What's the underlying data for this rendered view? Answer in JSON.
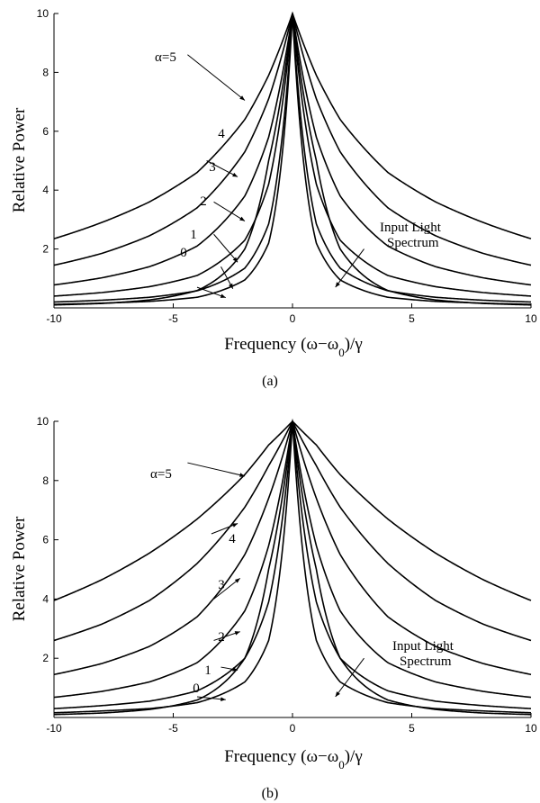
{
  "chart_data": [
    {
      "type": "line",
      "panel_label": "(a)",
      "xlabel": "Frequency (ω−ω",
      "xlabel_sub": "0",
      "xlabel_tail": ")/γ",
      "ylabel": "Relative Power",
      "xlim": [
        -10,
        10
      ],
      "ylim": [
        0,
        10
      ],
      "xticks": [
        -10,
        -5,
        0,
        5,
        10
      ],
      "xtick_labels": [
        "-10",
        "-5",
        "0",
        "5",
        "10"
      ],
      "yticks": [
        2,
        4,
        6,
        8,
        10
      ],
      "ytick_labels": [
        "2",
        "4",
        "6",
        "8",
        "10"
      ],
      "series": [
        {
          "name": "α=5",
          "label_text": "α=5",
          "x": [
            -10,
            -8,
            -6,
            -4,
            -2,
            -1,
            0,
            1,
            2,
            4,
            6,
            8,
            10
          ],
          "y": [
            2.35,
            2.9,
            3.6,
            4.6,
            6.4,
            7.9,
            10,
            7.9,
            6.4,
            4.6,
            3.6,
            2.9,
            2.35
          ]
        },
        {
          "name": "4",
          "label_text": "4",
          "x": [
            -10,
            -8,
            -6,
            -4,
            -2,
            -1,
            0,
            1,
            2,
            4,
            6,
            8,
            10
          ],
          "y": [
            1.45,
            1.85,
            2.45,
            3.4,
            5.3,
            7.1,
            10,
            7.1,
            5.3,
            3.4,
            2.45,
            1.85,
            1.45
          ]
        },
        {
          "name": "3",
          "label_text": "3",
          "x": [
            -10,
            -8,
            -6,
            -4,
            -2,
            -1,
            0,
            1,
            2,
            4,
            6,
            8,
            10
          ],
          "y": [
            0.78,
            1.02,
            1.4,
            2.1,
            3.8,
            5.8,
            10,
            5.8,
            3.8,
            2.1,
            1.4,
            1.02,
            0.78
          ]
        },
        {
          "name": "2",
          "label_text": "2",
          "x": [
            -10,
            -8,
            -6,
            -4,
            -2,
            -1,
            0,
            1,
            2,
            4,
            6,
            8,
            10
          ],
          "y": [
            0.4,
            0.52,
            0.72,
            1.1,
            2.3,
            4.2,
            10,
            4.2,
            2.3,
            1.1,
            0.72,
            0.52,
            0.4
          ]
        },
        {
          "name": "1",
          "label_text": "1",
          "x": [
            -10,
            -8,
            -6,
            -4,
            -2,
            -1,
            0,
            1,
            2,
            4,
            6,
            8,
            10
          ],
          "y": [
            0.2,
            0.26,
            0.36,
            0.58,
            1.35,
            2.85,
            10,
            2.85,
            1.35,
            0.58,
            0.36,
            0.26,
            0.2
          ]
        },
        {
          "name": "0",
          "label_text": "0",
          "x": [
            -10,
            -8,
            -6,
            -4,
            -2,
            -1,
            0,
            1,
            2,
            4,
            6,
            8,
            10
          ],
          "y": [
            0.12,
            0.16,
            0.22,
            0.36,
            0.95,
            2.2,
            10,
            2.2,
            0.95,
            0.36,
            0.22,
            0.16,
            0.12
          ]
        },
        {
          "name": "Input Light Spectrum",
          "label_text": "Input Light",
          "label_text2": "Spectrum",
          "x": [
            -10,
            -8,
            -6,
            -4,
            -2,
            -1,
            0,
            1,
            2,
            4,
            6,
            8,
            10
          ],
          "y": [
            0.1,
            0.15,
            0.27,
            0.59,
            2.0,
            5.0,
            10,
            5.0,
            2.0,
            0.59,
            0.27,
            0.15,
            0.1
          ]
        }
      ]
    },
    {
      "type": "line",
      "panel_label": "(b)",
      "xlabel": "Frequency (ω−ω",
      "xlabel_sub": "0",
      "xlabel_tail": ")/γ",
      "ylabel": "Relative Power",
      "xlim": [
        -10,
        10
      ],
      "ylim": [
        0,
        10
      ],
      "xticks": [
        -10,
        -5,
        0,
        5,
        10
      ],
      "xtick_labels": [
        "-10",
        "-5",
        "0",
        "5",
        "10"
      ],
      "yticks": [
        2,
        4,
        6,
        8,
        10
      ],
      "ytick_labels": [
        "2",
        "4",
        "6",
        "8",
        "10"
      ],
      "series": [
        {
          "name": "α=5",
          "label_text": "α=5",
          "x": [
            -10,
            -8,
            -6,
            -4,
            -2,
            -1,
            0,
            1,
            2,
            4,
            6,
            8,
            10
          ],
          "y": [
            3.95,
            4.65,
            5.55,
            6.7,
            8.2,
            9.2,
            10,
            9.2,
            8.2,
            6.7,
            5.55,
            4.65,
            3.95
          ]
        },
        {
          "name": "4",
          "label_text": "4",
          "x": [
            -10,
            -8,
            -6,
            -4,
            -2,
            -1,
            0,
            1,
            2,
            4,
            6,
            8,
            10
          ],
          "y": [
            2.6,
            3.15,
            3.95,
            5.2,
            7.1,
            8.5,
            10,
            8.5,
            7.1,
            5.2,
            3.95,
            3.15,
            2.6
          ]
        },
        {
          "name": "3",
          "label_text": "3",
          "x": [
            -10,
            -8,
            -6,
            -4,
            -2,
            -1,
            0,
            1,
            2,
            4,
            6,
            8,
            10
          ],
          "y": [
            1.45,
            1.82,
            2.4,
            3.4,
            5.5,
            7.4,
            10,
            7.4,
            5.5,
            3.4,
            2.4,
            1.82,
            1.45
          ]
        },
        {
          "name": "2",
          "label_text": "2",
          "x": [
            -10,
            -8,
            -6,
            -4,
            -2,
            -1,
            0,
            1,
            2,
            4,
            6,
            8,
            10
          ],
          "y": [
            0.68,
            0.88,
            1.2,
            1.85,
            3.6,
            5.8,
            10,
            5.8,
            3.6,
            1.85,
            1.2,
            0.88,
            0.68
          ]
        },
        {
          "name": "1",
          "label_text": "1",
          "x": [
            -10,
            -8,
            -6,
            -4,
            -2,
            -1,
            0,
            1,
            2,
            4,
            6,
            8,
            10
          ],
          "y": [
            0.3,
            0.4,
            0.55,
            0.9,
            2.0,
            3.9,
            10,
            3.9,
            2.0,
            0.9,
            0.55,
            0.4,
            0.3
          ]
        },
        {
          "name": "0",
          "label_text": "0",
          "x": [
            -10,
            -8,
            -6,
            -4,
            -2,
            -1,
            0,
            1,
            2,
            4,
            6,
            8,
            10
          ],
          "y": [
            0.16,
            0.22,
            0.3,
            0.5,
            1.2,
            2.6,
            10,
            2.6,
            1.2,
            0.5,
            0.3,
            0.22,
            0.16
          ]
        },
        {
          "name": "Input Light Spectrum",
          "label_text": "Input Light",
          "label_text2": "Spectrum",
          "x": [
            -10,
            -8,
            -6,
            -4,
            -2,
            -1,
            0,
            1,
            2,
            4,
            6,
            8,
            10
          ],
          "y": [
            0.1,
            0.15,
            0.27,
            0.59,
            2.0,
            5.0,
            10,
            5.0,
            2.0,
            0.59,
            0.27,
            0.15,
            0.1
          ]
        }
      ]
    }
  ]
}
